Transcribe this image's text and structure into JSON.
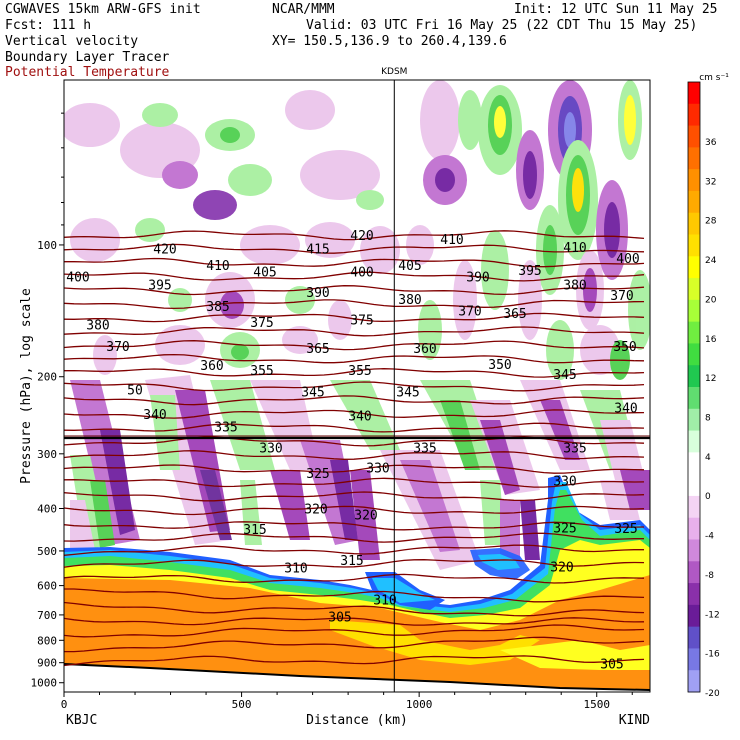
{
  "header": {
    "model": "CGWAVES 15km ARW-GFS init",
    "org": "NCAR/MMM",
    "init": "Init: 12 UTC Sun 11 May 25",
    "fcst": "Fcst:  111 h",
    "valid": "Valid: 03 UTC Fri 16 May 25 (22 CDT Thu 15 May 25)",
    "xy": "XY= 150.5,136.9 to 260.4,139.6",
    "fields": [
      "Vertical velocity",
      "Boundary Layer Tracer",
      "Potential Temperature"
    ]
  },
  "chart_data": {
    "type": "heatmap",
    "title": "",
    "xlabel": "Distance (km)",
    "ylabel": "Pressure (hPa), log scale",
    "x_ticks": [
      0,
      500,
      1000,
      1500
    ],
    "xlim": [
      0,
      1650
    ],
    "y_ticks": [
      100,
      200,
      300,
      400,
      500,
      600,
      700,
      800,
      900,
      1000
    ],
    "ylim": [
      1050,
      42
    ],
    "y_scale": "log",
    "endpoints": {
      "left": "KBJC",
      "right": "KIND"
    },
    "marker": {
      "label": "KDSM",
      "x": 930
    },
    "colorbar": {
      "unit": "cm s⁻¹",
      "labels": [
        "36",
        "32",
        "28",
        "24",
        "20",
        "16",
        "12",
        "8",
        "4",
        "0",
        "-4",
        "-8",
        "-12",
        "-16",
        "-20"
      ],
      "colors": [
        "#ff0000",
        "#ff2400",
        "#ff4a00",
        "#ff6a00",
        "#ff8a00",
        "#ffa000",
        "#ffc000",
        "#ffe000",
        "#ffff00",
        "#e0ff20",
        "#b0ff30",
        "#80ee40",
        "#50dd50",
        "#30cc60",
        "#60dd80",
        "#a0ee b0",
        "#d0ffd8",
        "#ffffff",
        "#ffffff",
        "#f0c8f0",
        "#e0a0e8",
        "#c070d0",
        "#a040b8",
        "#7020a0",
        "#6040c0",
        "#7070e0",
        "#a0a0f8"
      ]
    },
    "theta_labels": [
      {
        "v": "420",
        "x": 165,
        "p": 102
      },
      {
        "v": "415",
        "x": 318,
        "p": 102
      },
      {
        "v": "420",
        "x": 362,
        "p": 95
      },
      {
        "v": "410",
        "x": 452,
        "p": 97
      },
      {
        "v": "410",
        "x": 575,
        "p": 101
      },
      {
        "v": "400",
        "x": 78,
        "p": 118
      },
      {
        "v": "410",
        "x": 218,
        "p": 111
      },
      {
        "v": "405",
        "x": 265,
        "p": 115
      },
      {
        "v": "400",
        "x": 362,
        "p": 115
      },
      {
        "v": "405",
        "x": 410,
        "p": 111
      },
      {
        "v": "400",
        "x": 628,
        "p": 107
      },
      {
        "v": "395",
        "x": 160,
        "p": 123
      },
      {
        "v": "390",
        "x": 318,
        "p": 128
      },
      {
        "v": "380",
        "x": 410,
        "p": 133
      },
      {
        "v": "390",
        "x": 478,
        "p": 118
      },
      {
        "v": "395",
        "x": 530,
        "p": 114
      },
      {
        "v": "380",
        "x": 575,
        "p": 123
      },
      {
        "v": "370",
        "x": 622,
        "p": 130
      },
      {
        "v": "385",
        "x": 218,
        "p": 138
      },
      {
        "v": "375",
        "x": 262,
        "p": 150
      },
      {
        "v": "375",
        "x": 362,
        "p": 148
      },
      {
        "v": "370",
        "x": 470,
        "p": 141
      },
      {
        "v": "365",
        "x": 515,
        "p": 143
      },
      {
        "v": "380",
        "x": 98,
        "p": 152
      },
      {
        "v": "370",
        "x": 118,
        "p": 170
      },
      {
        "v": "365",
        "x": 318,
        "p": 172
      },
      {
        "v": "360",
        "x": 212,
        "p": 188
      },
      {
        "v": "355",
        "x": 262,
        "p": 193
      },
      {
        "v": "355",
        "x": 360,
        "p": 193
      },
      {
        "v": "360",
        "x": 425,
        "p": 172
      },
      {
        "v": "350",
        "x": 500,
        "p": 187
      },
      {
        "v": "345",
        "x": 565,
        "p": 197
      },
      {
        "v": "350",
        "x": 625,
        "p": 170
      },
      {
        "v": "50",
        "x": 135,
        "p": 214
      },
      {
        "v": "345",
        "x": 313,
        "p": 216
      },
      {
        "v": "345",
        "x": 408,
        "p": 216
      },
      {
        "v": "340",
        "x": 155,
        "p": 243
      },
      {
        "v": "340",
        "x": 360,
        "p": 245
      },
      {
        "v": "335",
        "x": 226,
        "p": 260
      },
      {
        "v": "340",
        "x": 626,
        "p": 235
      },
      {
        "v": "330",
        "x": 271,
        "p": 290
      },
      {
        "v": "335",
        "x": 425,
        "p": 290
      },
      {
        "v": "335",
        "x": 575,
        "p": 290
      },
      {
        "v": "325",
        "x": 318,
        "p": 332
      },
      {
        "v": "330",
        "x": 378,
        "p": 322
      },
      {
        "v": "330",
        "x": 565,
        "p": 345
      },
      {
        "v": "320",
        "x": 316,
        "p": 400
      },
      {
        "v": "320",
        "x": 366,
        "p": 413
      },
      {
        "v": "315",
        "x": 255,
        "p": 445
      },
      {
        "v": "325",
        "x": 565,
        "p": 442
      },
      {
        "v": "325",
        "x": 626,
        "p": 443
      },
      {
        "v": "310",
        "x": 296,
        "p": 545
      },
      {
        "v": "315",
        "x": 352,
        "p": 525
      },
      {
        "v": "320",
        "x": 562,
        "p": 542
      },
      {
        "v": "310",
        "x": 385,
        "p": 645
      },
      {
        "v": "305",
        "x": 340,
        "p": 705
      },
      {
        "v": "305",
        "x": 612,
        "p": 905
      }
    ]
  }
}
